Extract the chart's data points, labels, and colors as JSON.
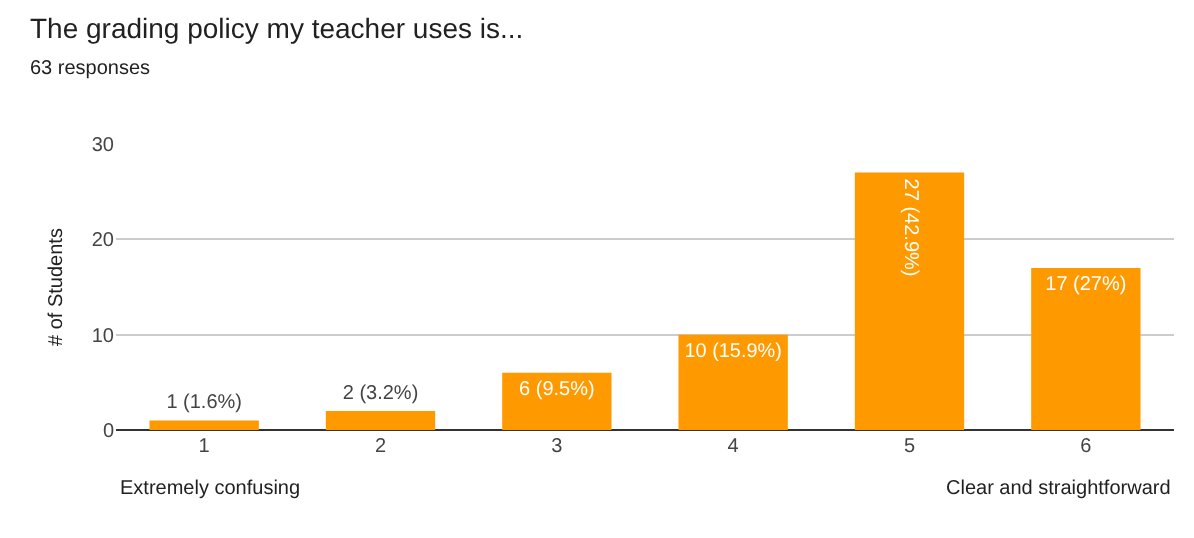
{
  "chart_data": {
    "type": "bar",
    "title": "The grading policy my teacher uses is...",
    "subtitle": "63 responses",
    "ylabel": "# of Students",
    "categories": [
      "1",
      "2",
      "3",
      "4",
      "5",
      "6"
    ],
    "values": [
      1,
      2,
      6,
      10,
      27,
      17
    ],
    "value_labels": [
      "1 (1.6%)",
      "2 (3.2%)",
      "6 (9.5%)",
      "10 (15.9%)",
      "27 (42.9%)",
      "17 (27%)"
    ],
    "color": "#ff9900",
    "ylim": [
      0,
      30
    ],
    "yticks": [
      0,
      10,
      20,
      30
    ],
    "grid": "y",
    "annotations": [
      "Extremely confusing",
      "Clear and straightforward"
    ]
  }
}
